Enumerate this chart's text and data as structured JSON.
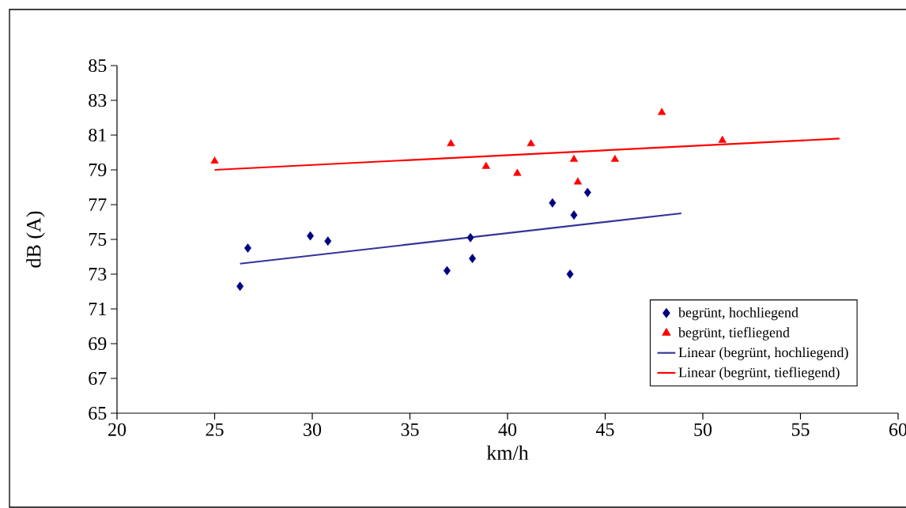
{
  "chart_data": {
    "type": "scatter",
    "xlabel": "km/h",
    "ylabel": "dB (A)",
    "xlim": [
      20,
      60
    ],
    "xticks": [
      20,
      25,
      30,
      35,
      40,
      45,
      50,
      55,
      60
    ],
    "ylim": [
      65,
      85
    ],
    "yticks": [
      65,
      67,
      69,
      71,
      73,
      75,
      77,
      79,
      81,
      83,
      85
    ],
    "grid": false,
    "legend": "bottom right",
    "series": [
      {
        "name": "begrünt, hochliegend",
        "type": "scatter",
        "marker": "diamond",
        "color": "#000080",
        "x": [
          26.3,
          26.7,
          29.9,
          30.8,
          36.9,
          38.1,
          38.2,
          42.3,
          43.4,
          43.2,
          44.1
        ],
        "values": [
          72.3,
          74.5,
          75.2,
          74.9,
          73.2,
          75.1,
          73.9,
          77.1,
          76.4,
          73.0,
          77.7
        ]
      },
      {
        "name": "begrünt, tiefliegend",
        "type": "scatter",
        "marker": "triangle",
        "color": "#ff0000",
        "x": [
          25.0,
          37.1,
          38.9,
          40.5,
          41.2,
          43.4,
          43.6,
          45.5,
          47.9,
          51.0
        ],
        "values": [
          79.5,
          80.5,
          79.2,
          78.8,
          80.5,
          79.6,
          78.3,
          79.6,
          82.3,
          80.7
        ]
      },
      {
        "name": "Linear (begrünt, hochliegend)",
        "type": "line",
        "color": "#333399",
        "x": [
          26.3,
          48.9
        ],
        "values": [
          73.6,
          76.5
        ]
      },
      {
        "name": "Linear (begrünt, tiefliegend)",
        "type": "line",
        "color": "#ff0000",
        "x": [
          25.0,
          57.0
        ],
        "values": [
          79.0,
          80.8
        ]
      }
    ]
  }
}
